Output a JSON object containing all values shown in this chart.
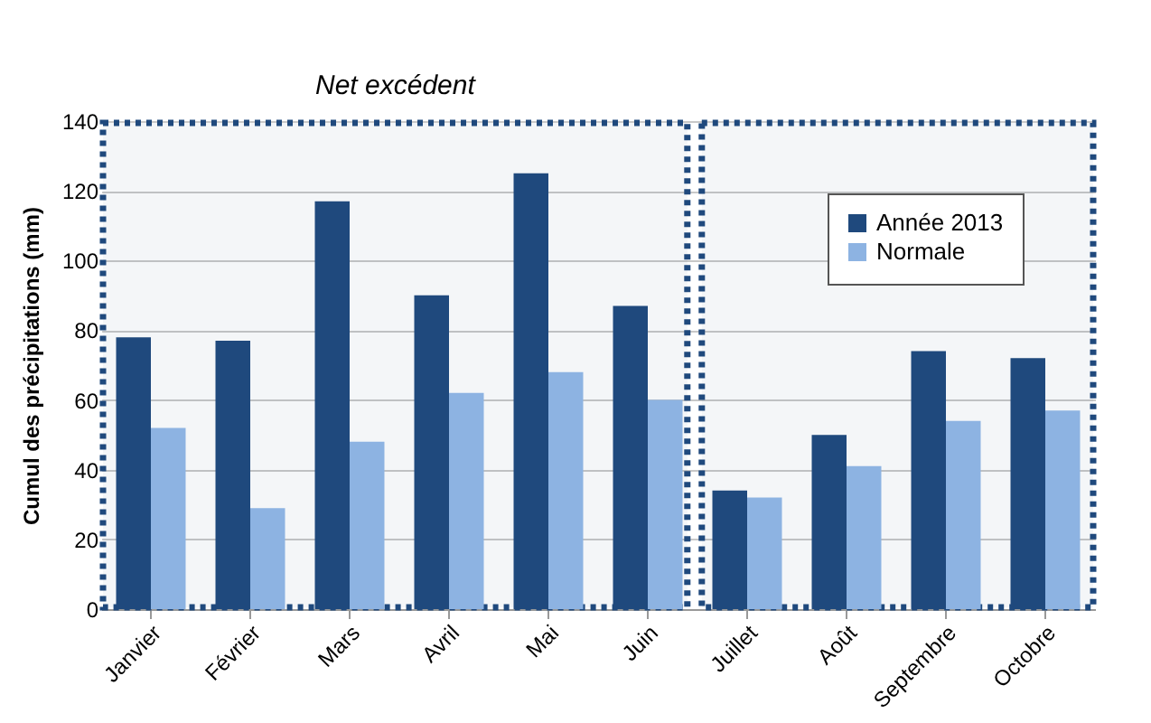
{
  "chart_data": {
    "type": "bar",
    "ylabel": "Cumul des précipitations  (mm)",
    "categories": [
      "Janvier",
      "Février",
      "Mars",
      "Avril",
      "Mai",
      "Juin",
      "Juillet",
      "Août",
      "Septembre",
      "Octobre"
    ],
    "series": [
      {
        "name": "Année 2013",
        "color": "#1f497d",
        "values": [
          78,
          77,
          117,
          90,
          125,
          87,
          34,
          50,
          74,
          72
        ]
      },
      {
        "name": "Normale",
        "color": "#8db3e2",
        "values": [
          52,
          29,
          48,
          62,
          68,
          60,
          32,
          41,
          54,
          57
        ]
      }
    ],
    "ylim": [
      0,
      140
    ],
    "yticks": [
      0,
      20,
      40,
      60,
      80,
      100,
      120,
      140
    ],
    "grid": "y",
    "legend": "top right",
    "bands": [
      {
        "axis": "x",
        "from": "Janvier",
        "to": "Juin",
        "label": "Net excédent",
        "color": "#1f497d"
      },
      {
        "axis": "x",
        "from": "Juillet",
        "to": "Octobre",
        "label": null,
        "color": "#1f497d"
      }
    ]
  }
}
